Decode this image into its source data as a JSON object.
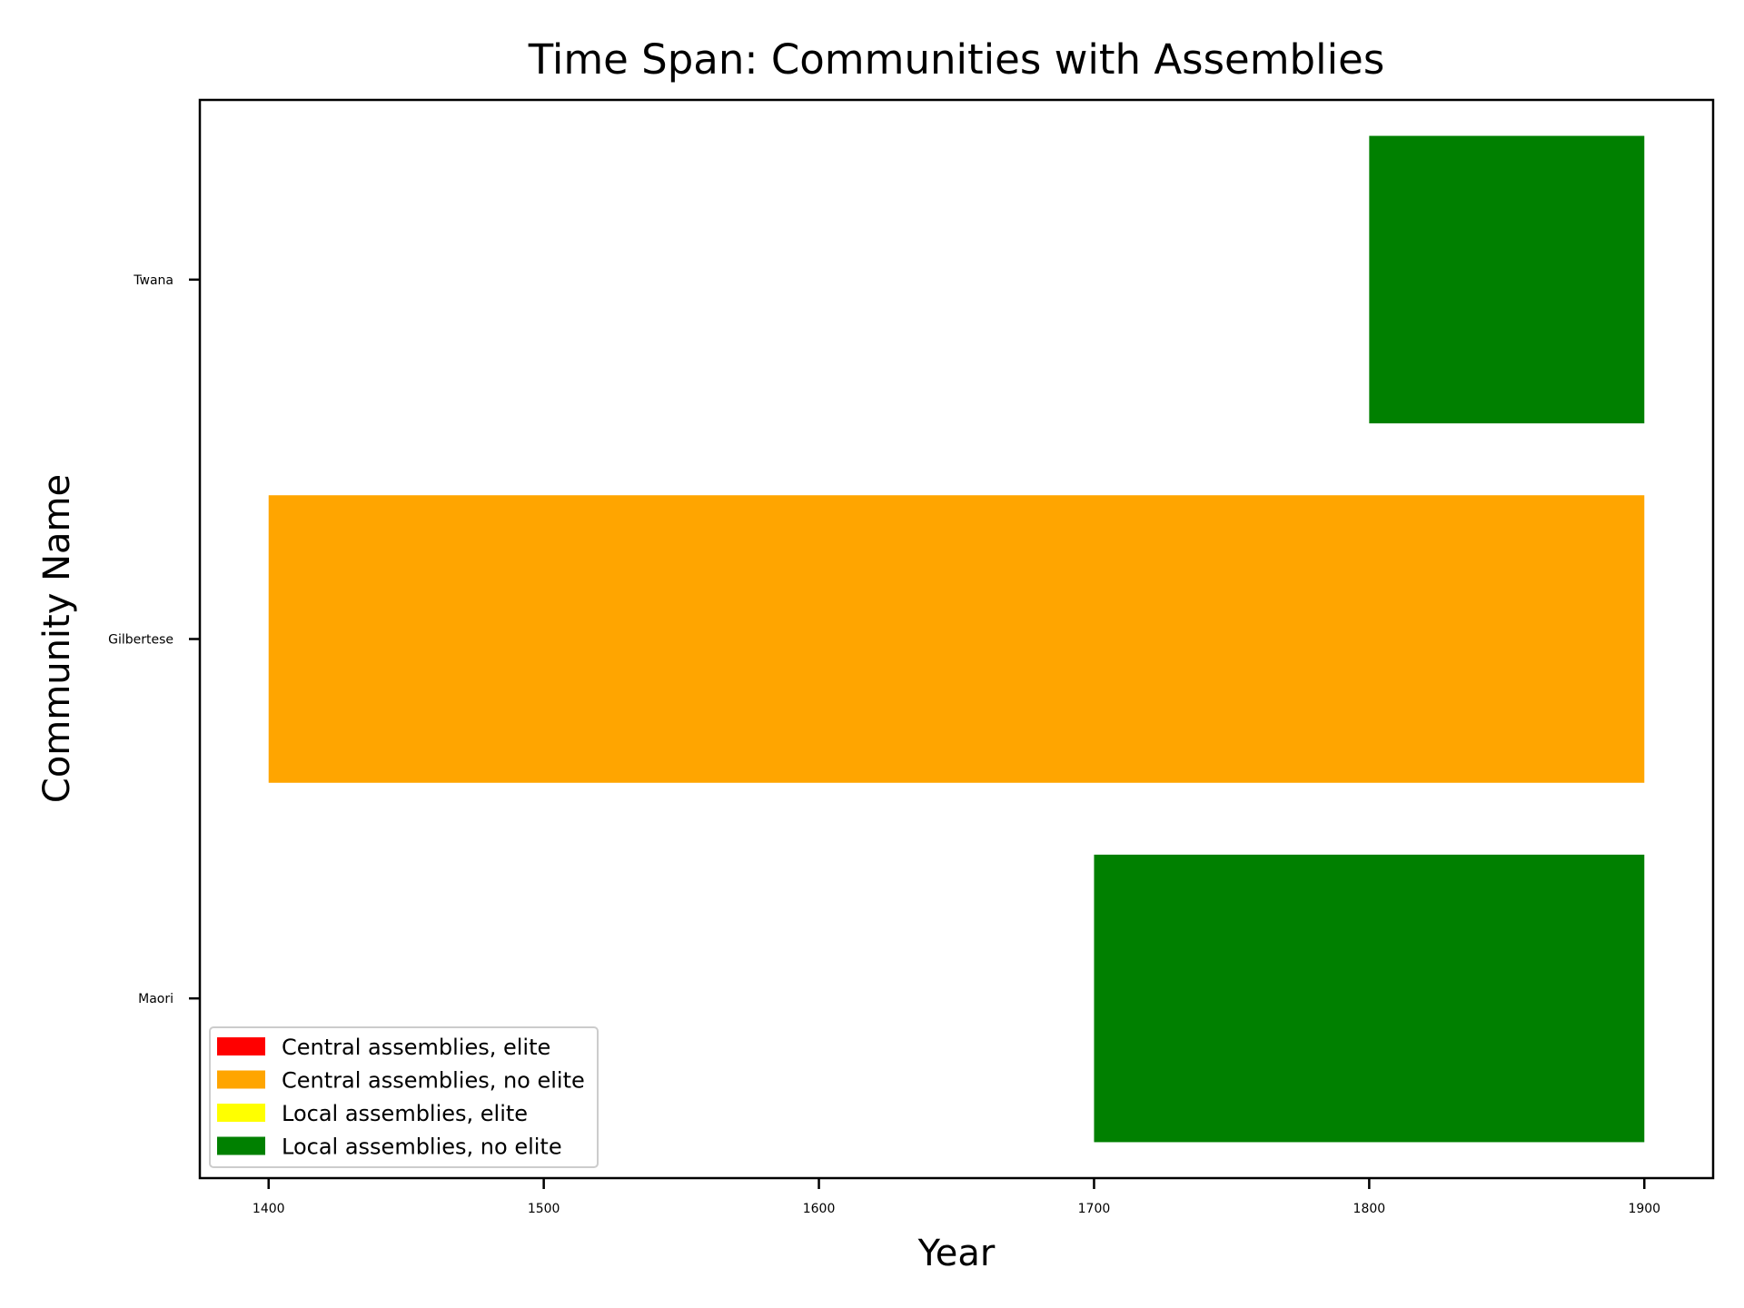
{
  "chart_data": {
    "type": "timeline",
    "title": "Time Span: Communities with Assemblies",
    "xlabel": "Year",
    "ylabel": "Community Name",
    "xlim": [
      1375,
      1925
    ],
    "xticks": [
      "1400",
      "1500",
      "1600",
      "1700",
      "1800",
      "1900"
    ],
    "categories": [
      "Maori",
      "Gilbertese",
      "Twana"
    ],
    "bars": [
      {
        "community": "Twana",
        "start": 1800,
        "end": 1900,
        "category": "Local assemblies, no elite",
        "color": "#008000"
      },
      {
        "community": "Gilbertese",
        "start": 1400,
        "end": 1900,
        "category": "Central assemblies, no elite",
        "color": "#ffa500"
      },
      {
        "community": "Maori",
        "start": 1700,
        "end": 1900,
        "category": "Local assemblies, no elite",
        "color": "#008000"
      }
    ],
    "legend": {
      "position": "lower-left",
      "items": [
        {
          "label": "Central assemblies, elite",
          "color": "#ff0000"
        },
        {
          "label": "Central assemblies, no elite",
          "color": "#ffa500"
        },
        {
          "label": "Local assemblies, elite",
          "color": "#ffff00"
        },
        {
          "label": "Local assemblies, no elite",
          "color": "#008000"
        }
      ]
    },
    "grid": false
  }
}
